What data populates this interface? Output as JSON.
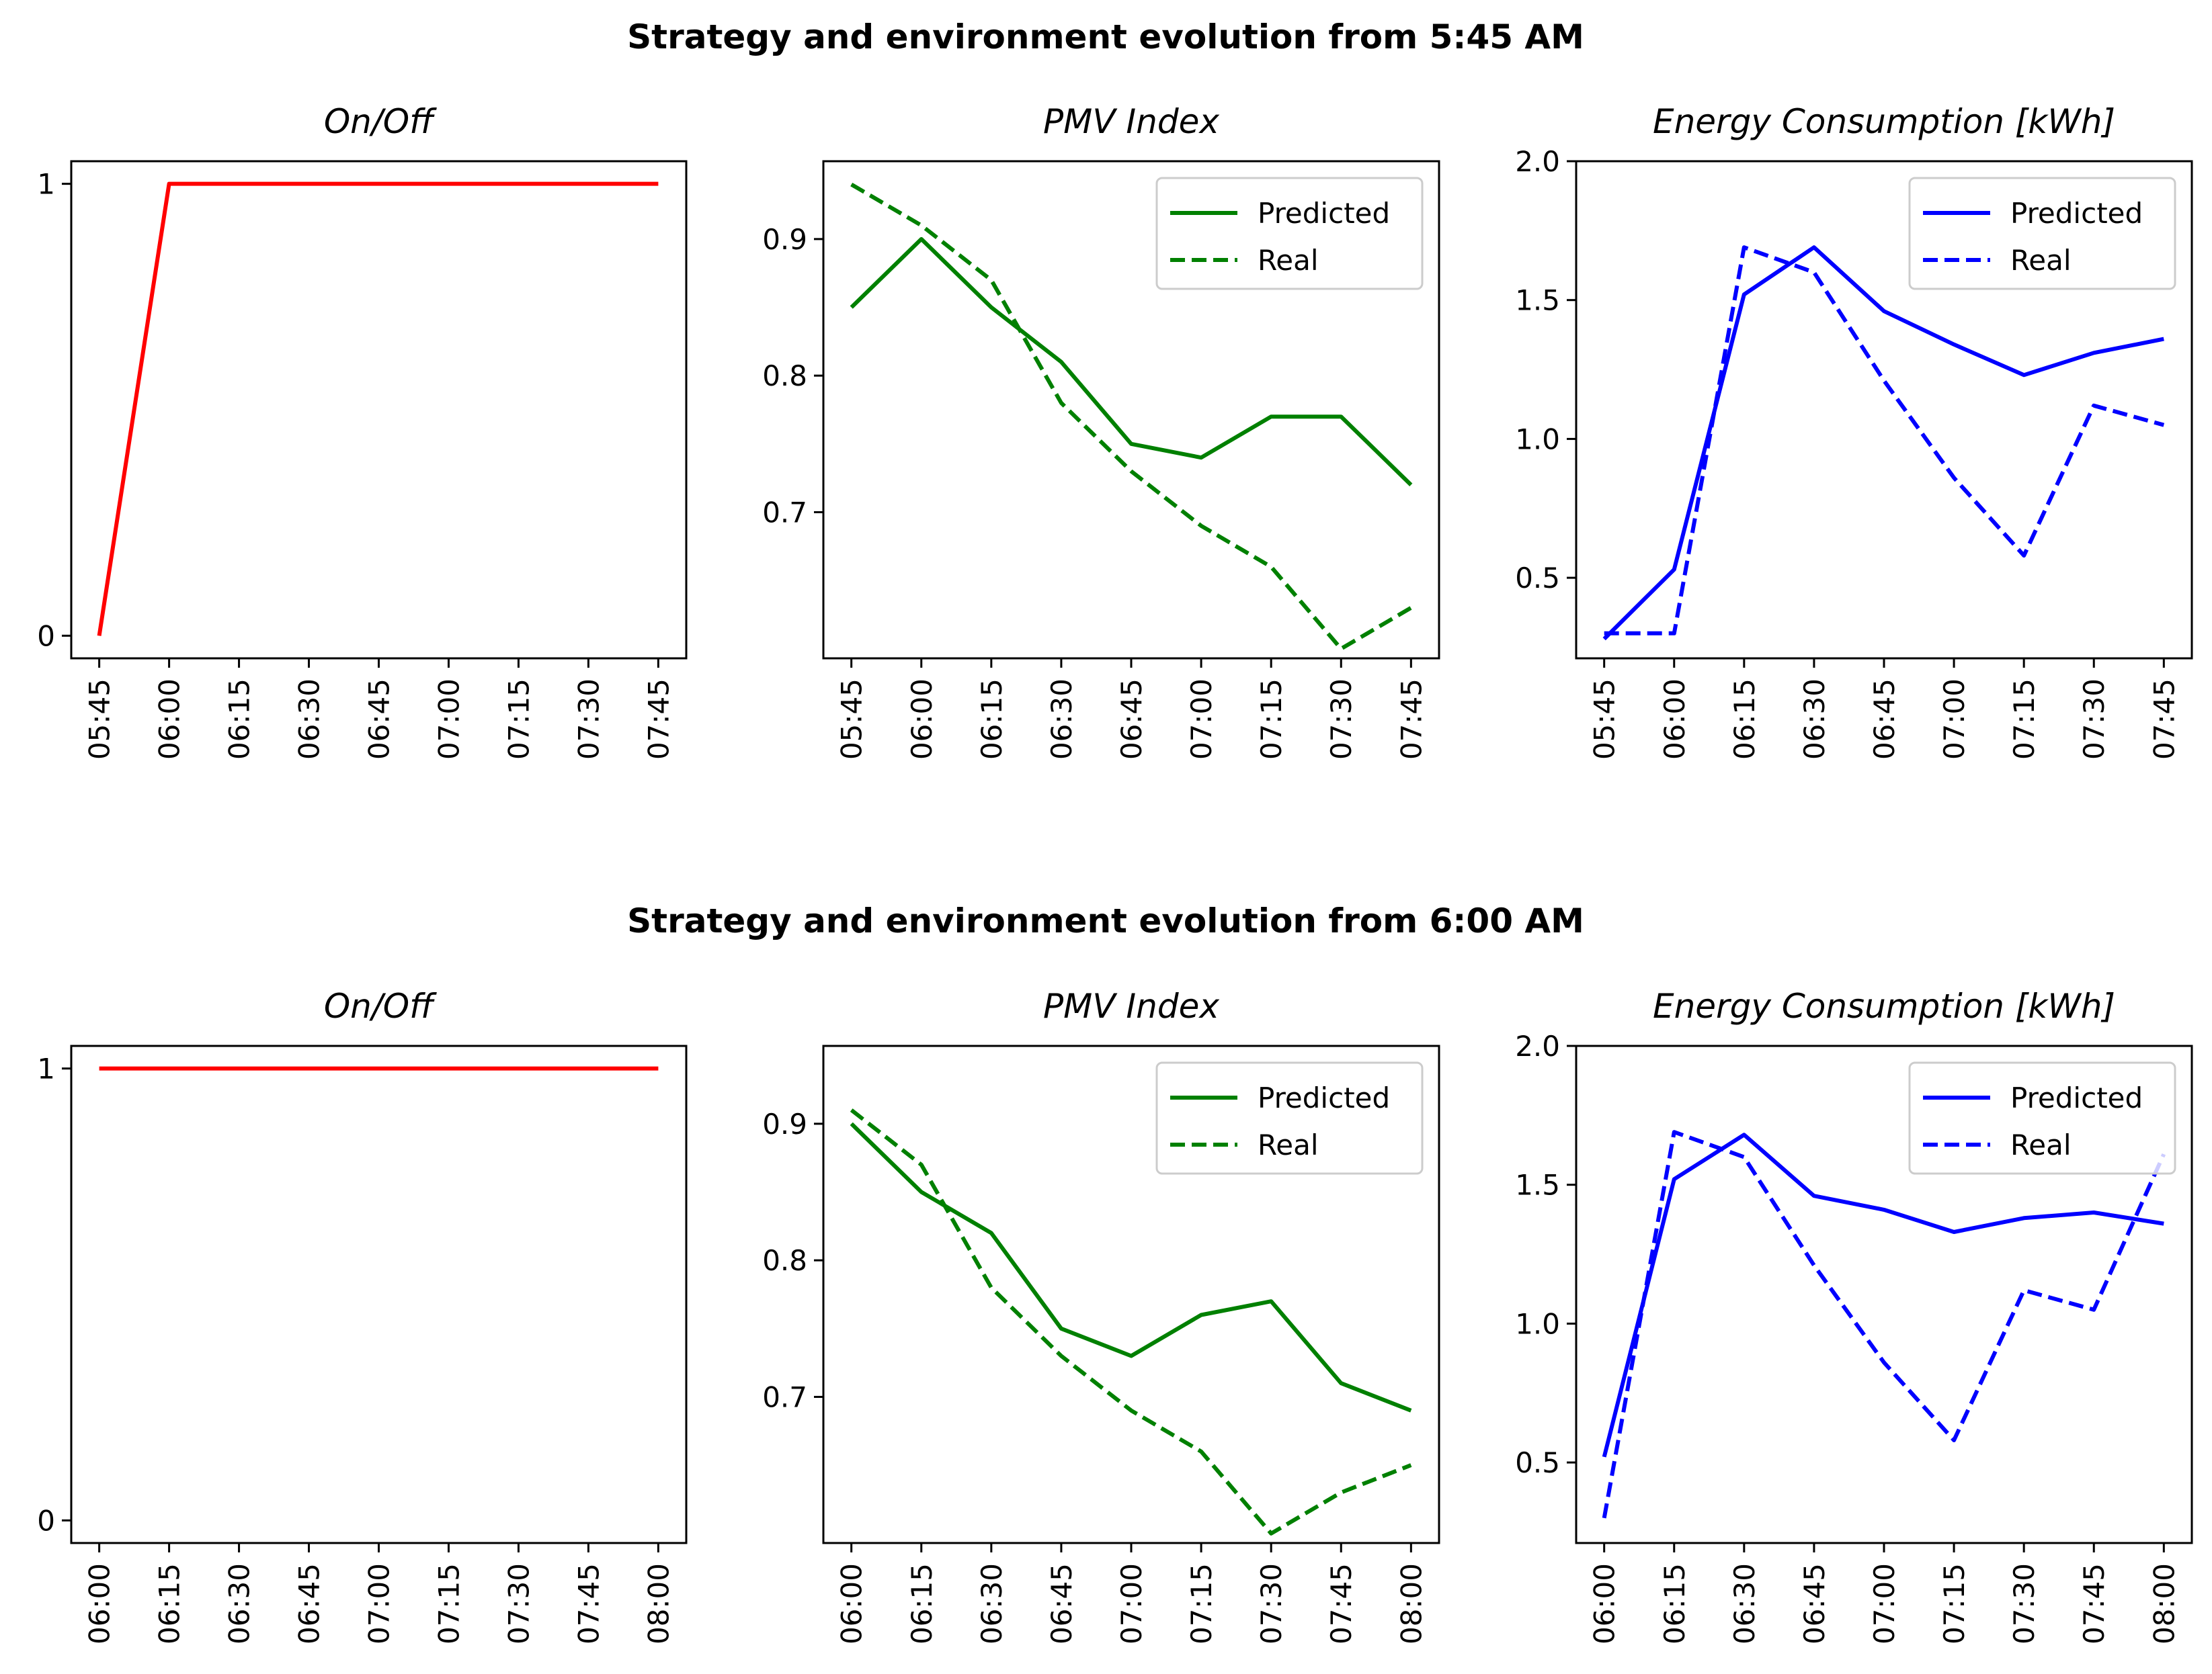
{
  "chart_data": [
    {
      "type": "line",
      "title": "On/Off",
      "group_title": "Strategy and environment evolution from 5:45 AM",
      "categories": [
        "05:45",
        "06:00",
        "06:15",
        "06:30",
        "06:45",
        "07:00",
        "07:15",
        "07:30",
        "07:45"
      ],
      "ylim": [
        -0.05,
        1.05
      ],
      "yticks": [
        0,
        1
      ],
      "series": [
        {
          "name": "On/Off",
          "color": "#ff0000",
          "style": "solid",
          "values": [
            0,
            1,
            1,
            1,
            1,
            1,
            1,
            1,
            1
          ]
        }
      ],
      "legend": null
    },
    {
      "type": "line",
      "title": "PMV Index",
      "group_title": "Strategy and environment evolution from 5:45 AM",
      "categories": [
        "05:45",
        "06:00",
        "06:15",
        "06:30",
        "06:45",
        "07:00",
        "07:15",
        "07:30",
        "07:45"
      ],
      "ylim": [
        0.593,
        0.957
      ],
      "yticks": [
        0.7,
        0.8,
        0.9
      ],
      "series": [
        {
          "name": "Predicted",
          "color": "#008000",
          "style": "solid",
          "values": [
            0.85,
            0.9,
            0.85,
            0.81,
            0.75,
            0.74,
            0.77,
            0.77,
            0.72
          ]
        },
        {
          "name": "Real",
          "color": "#008000",
          "style": "dashed",
          "values": [
            0.94,
            0.91,
            0.87,
            0.78,
            0.73,
            0.69,
            0.66,
            0.6,
            0.63
          ]
        }
      ],
      "legend": "upper right"
    },
    {
      "type": "line",
      "title": "Energy Consumption [kWh]",
      "group_title": "Strategy and environment evolution from 5:45 AM",
      "categories": [
        "05:45",
        "06:00",
        "06:15",
        "06:30",
        "06:45",
        "07:00",
        "07:15",
        "07:30",
        "07:45"
      ],
      "ylim": [
        0.21,
        2.0
      ],
      "yticks": [
        0.5,
        1.0,
        1.5,
        2.0
      ],
      "series": [
        {
          "name": "Predicted",
          "color": "#0000ff",
          "style": "solid",
          "values": [
            0.28,
            0.53,
            1.52,
            1.69,
            1.46,
            1.34,
            1.23,
            1.31,
            1.36
          ]
        },
        {
          "name": "Real",
          "color": "#0000ff",
          "style": "dashed",
          "values": [
            0.3,
            0.3,
            1.69,
            1.6,
            1.21,
            0.86,
            0.58,
            1.12,
            1.05
          ]
        }
      ],
      "legend": "upper right"
    },
    {
      "type": "line",
      "title": "On/Off",
      "group_title": "Strategy and environment evolution from 6:00 AM",
      "categories": [
        "06:00",
        "06:15",
        "06:30",
        "06:45",
        "07:00",
        "07:15",
        "07:30",
        "07:45",
        "08:00"
      ],
      "ylim": [
        -0.05,
        1.05
      ],
      "yticks": [
        0,
        1
      ],
      "series": [
        {
          "name": "On/Off",
          "color": "#ff0000",
          "style": "solid",
          "values": [
            1,
            1,
            1,
            1,
            1,
            1,
            1,
            1,
            1
          ]
        }
      ],
      "legend": null
    },
    {
      "type": "line",
      "title": "PMV Index",
      "group_title": "Strategy and environment evolution from 6:00 AM",
      "categories": [
        "06:00",
        "06:15",
        "06:30",
        "06:45",
        "07:00",
        "07:15",
        "07:30",
        "07:45",
        "08:00"
      ],
      "ylim": [
        0.593,
        0.957
      ],
      "yticks": [
        0.7,
        0.8,
        0.9
      ],
      "series": [
        {
          "name": "Predicted",
          "color": "#008000",
          "style": "solid",
          "values": [
            0.9,
            0.85,
            0.82,
            0.75,
            0.73,
            0.76,
            0.77,
            0.71,
            0.69
          ]
        },
        {
          "name": "Real",
          "color": "#008000",
          "style": "dashed",
          "values": [
            0.91,
            0.87,
            0.78,
            0.73,
            0.69,
            0.66,
            0.6,
            0.63,
            0.65
          ]
        }
      ],
      "legend": "upper right"
    },
    {
      "type": "line",
      "title": "Energy Consumption [kWh]",
      "group_title": "Strategy and environment evolution from 6:00 AM",
      "categories": [
        "06:00",
        "06:15",
        "06:30",
        "06:45",
        "07:00",
        "07:15",
        "07:30",
        "07:45",
        "08:00"
      ],
      "ylim": [
        0.21,
        2.0
      ],
      "yticks": [
        0.5,
        1.0,
        1.5,
        2.0
      ],
      "series": [
        {
          "name": "Predicted",
          "color": "#0000ff",
          "style": "solid",
          "values": [
            0.52,
            1.52,
            1.68,
            1.46,
            1.41,
            1.33,
            1.38,
            1.4,
            1.36
          ]
        },
        {
          "name": "Real",
          "color": "#0000ff",
          "style": "dashed",
          "values": [
            0.3,
            1.69,
            1.6,
            1.21,
            0.86,
            0.58,
            1.12,
            1.05,
            1.61
          ]
        }
      ],
      "legend": "upper right"
    }
  ],
  "suptitles": [
    "Strategy and environment evolution from 5:45 AM",
    "Strategy and environment evolution from 6:00 AM"
  ]
}
